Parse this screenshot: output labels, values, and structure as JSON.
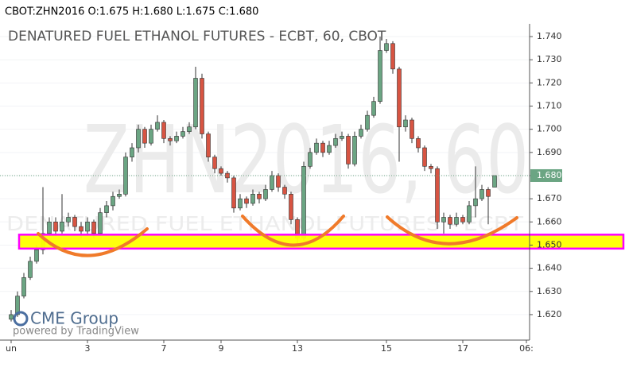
{
  "chart_data": {
    "type": "candlestick",
    "header": "CBOT:ZHN2016 O:1.675 H:1.680 L:1.675 C:1.680",
    "title": "DENATURED FUEL ETHANOL FUTURES - ECBT, 60, CBOT",
    "watermark": "ZHN2016, 60",
    "watermark_subtitle": "DENATURED FUEL ETHANOL FUTURES - ECBT",
    "logo": "CME Group",
    "powered_by": "powered by TradingView",
    "up_color": "#6ba583",
    "down_color": "#d75442",
    "categories": [
      "un",
      null,
      null,
      null,
      null,
      null,
      null,
      null,
      null,
      null,
      null,
      null,
      "3",
      null,
      null,
      null,
      null,
      null,
      null,
      null,
      null,
      null,
      null,
      null,
      "7",
      null,
      null,
      null,
      null,
      null,
      null,
      null,
      null,
      "9",
      null,
      null,
      null,
      null,
      null,
      null,
      null,
      null,
      null,
      null,
      null,
      "13",
      null,
      null,
      null,
      null,
      null,
      null,
      null,
      null,
      null,
      null,
      null,
      null,
      null,
      "15",
      null,
      null,
      null,
      null,
      null,
      null,
      null,
      null,
      null,
      null,
      null,
      "17",
      null,
      null,
      null,
      null,
      null,
      null,
      null,
      null,
      null,
      "06:"
    ],
    "open": [
      1.618,
      1.62,
      1.628,
      1.636,
      1.643,
      1.648,
      1.655,
      1.66,
      1.656,
      1.66,
      1.662,
      1.658,
      1.656,
      1.66,
      1.655,
      1.664,
      1.667,
      1.671,
      1.672,
      1.688,
      1.692,
      1.7,
      1.694,
      1.7,
      1.703,
      1.696,
      1.695,
      1.697,
      1.699,
      1.701,
      1.722,
      1.698,
      1.688,
      1.683,
      1.681,
      1.679,
      1.666,
      1.67,
      1.668,
      1.672,
      1.67,
      1.674,
      1.68,
      1.675,
      1.672,
      1.661,
      1.653,
      1.684,
      1.69,
      1.694,
      1.69,
      1.693,
      1.696,
      1.697,
      1.685,
      1.697,
      1.7,
      1.706,
      1.712,
      1.734,
      1.737,
      1.726,
      1.701,
      1.704,
      1.696,
      1.692,
      1.684,
      1.683,
      1.66,
      1.662,
      1.659,
      1.662,
      1.66,
      1.667,
      1.67,
      1.674,
      1.675,
      null,
      null,
      null,
      null,
      null
    ],
    "high": [
      1.622,
      1.63,
      1.638,
      1.645,
      1.65,
      1.675,
      1.662,
      1.662,
      1.672,
      1.664,
      1.663,
      1.66,
      1.662,
      1.661,
      1.666,
      1.669,
      1.673,
      1.674,
      1.69,
      1.694,
      1.702,
      1.701,
      1.702,
      1.706,
      1.704,
      1.697,
      1.699,
      1.701,
      1.703,
      1.727,
      1.724,
      1.699,
      1.689,
      1.684,
      1.682,
      1.68,
      1.672,
      1.671,
      1.674,
      1.673,
      1.676,
      1.682,
      1.681,
      1.676,
      1.673,
      1.662,
      1.686,
      1.692,
      1.696,
      1.695,
      1.695,
      1.698,
      1.699,
      1.698,
      1.699,
      1.702,
      1.708,
      1.714,
      1.74,
      1.739,
      1.738,
      1.727,
      1.706,
      1.705,
      1.697,
      1.693,
      1.685,
      1.684,
      1.664,
      1.663,
      1.664,
      1.663,
      1.669,
      1.684,
      1.676,
      1.675,
      1.68,
      null,
      null,
      null,
      null,
      null
    ],
    "low": [
      1.617,
      1.619,
      1.627,
      1.635,
      1.642,
      1.646,
      1.654,
      1.654,
      1.655,
      1.658,
      1.656,
      1.653,
      1.654,
      1.653,
      1.654,
      1.662,
      1.665,
      1.67,
      1.671,
      1.686,
      1.69,
      1.692,
      1.693,
      1.699,
      1.694,
      1.693,
      1.694,
      1.696,
      1.698,
      1.7,
      1.696,
      1.686,
      1.681,
      1.68,
      1.677,
      1.664,
      1.665,
      1.666,
      1.667,
      1.668,
      1.669,
      1.673,
      1.673,
      1.67,
      1.659,
      1.65,
      1.652,
      1.683,
      1.689,
      1.688,
      1.689,
      1.692,
      1.695,
      1.683,
      1.684,
      1.696,
      1.699,
      1.705,
      1.711,
      1.733,
      1.724,
      1.686,
      1.699,
      1.694,
      1.69,
      1.682,
      1.681,
      1.657,
      1.655,
      1.657,
      1.658,
      1.659,
      1.659,
      1.662,
      1.669,
      1.659,
      1.675,
      null,
      null,
      null,
      null,
      null
    ],
    "close": [
      1.62,
      1.628,
      1.636,
      1.643,
      1.648,
      1.655,
      1.66,
      1.656,
      1.66,
      1.662,
      1.658,
      1.656,
      1.66,
      1.655,
      1.664,
      1.667,
      1.671,
      1.672,
      1.688,
      1.692,
      1.7,
      1.694,
      1.7,
      1.703,
      1.696,
      1.695,
      1.697,
      1.699,
      1.701,
      1.722,
      1.698,
      1.688,
      1.683,
      1.681,
      1.679,
      1.666,
      1.67,
      1.668,
      1.672,
      1.67,
      1.674,
      1.68,
      1.675,
      1.672,
      1.661,
      1.653,
      1.684,
      1.69,
      1.694,
      1.69,
      1.693,
      1.696,
      1.697,
      1.685,
      1.697,
      1.7,
      1.706,
      1.712,
      1.734,
      1.737,
      1.726,
      1.701,
      1.704,
      1.696,
      1.692,
      1.684,
      1.683,
      1.66,
      1.662,
      1.659,
      1.662,
      1.66,
      1.667,
      1.67,
      1.674,
      1.671,
      1.68,
      null,
      null,
      null,
      null,
      null
    ],
    "ylim": [
      1.609,
      1.7455
    ],
    "yticks": [
      {
        "value": 1.62,
        "label": "1.620"
      },
      {
        "value": 1.63,
        "label": "1.630"
      },
      {
        "value": 1.64,
        "label": "1.640"
      },
      {
        "value": 1.65,
        "label": "1.650"
      },
      {
        "value": 1.66,
        "label": "1.660"
      },
      {
        "value": 1.67,
        "label": "1.670"
      },
      {
        "value": 1.68,
        "label": "1.680"
      },
      {
        "value": 1.69,
        "label": "1.690"
      },
      {
        "value": 1.7,
        "label": "1.700"
      },
      {
        "value": 1.71,
        "label": "1.710"
      },
      {
        "value": 1.72,
        "label": "1.720"
      },
      {
        "value": 1.73,
        "label": "1.730"
      },
      {
        "value": 1.74,
        "label": "1.740"
      }
    ],
    "last_price": {
      "value": 1.68,
      "label": "1.680"
    },
    "last_price_color": "#6ba583",
    "band": {
      "low": 1.6485,
      "high": 1.6545,
      "fill": "#ffff00",
      "stroke": "#ff00ff"
    },
    "grid": true
  }
}
